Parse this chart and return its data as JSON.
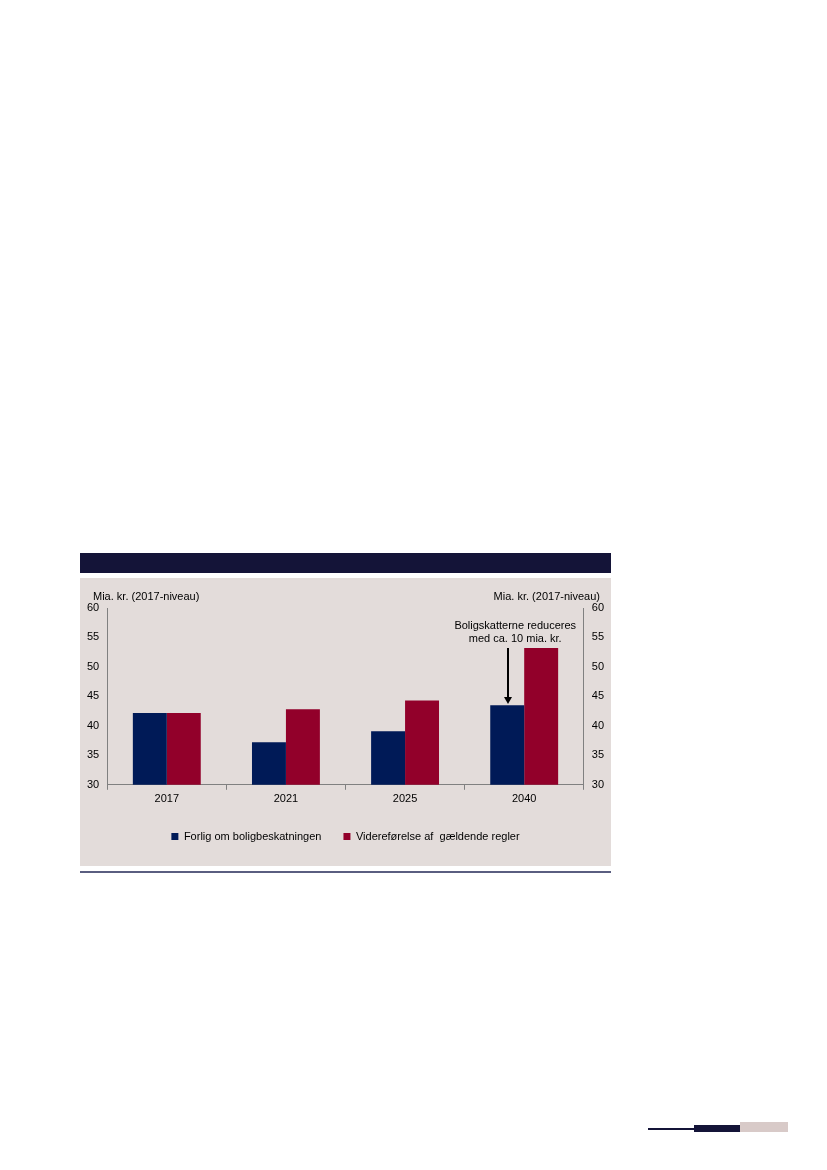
{
  "chart_data": {
    "type": "bar",
    "ylabel": "Mia. kr. (2017-niveau)",
    "y2label": "Mia. kr. (2017-niveau)",
    "categories": [
      "2017",
      "2021",
      "2025",
      "2040"
    ],
    "series": [
      {
        "name": "Forlig om boligbeskatningen",
        "color": "#001a57",
        "values": [
          42.2,
          37.2,
          39.1,
          43.5
        ]
      },
      {
        "name": "Videreførelse af  gældende regler",
        "color": "#92002a",
        "values": [
          42.2,
          42.8,
          44.3,
          53.2
        ]
      }
    ],
    "ylim": [
      30,
      60
    ],
    "yticks": [
      30,
      35,
      40,
      45,
      50,
      55,
      60
    ],
    "y2lim": [
      30,
      60
    ],
    "y2ticks": [
      30,
      35,
      40,
      45,
      50,
      55,
      60
    ],
    "annotations": [
      "Boligskatterne reduceres\nmed ca. 10 mia. kr."
    ],
    "grid": false,
    "legend": "bottom"
  }
}
